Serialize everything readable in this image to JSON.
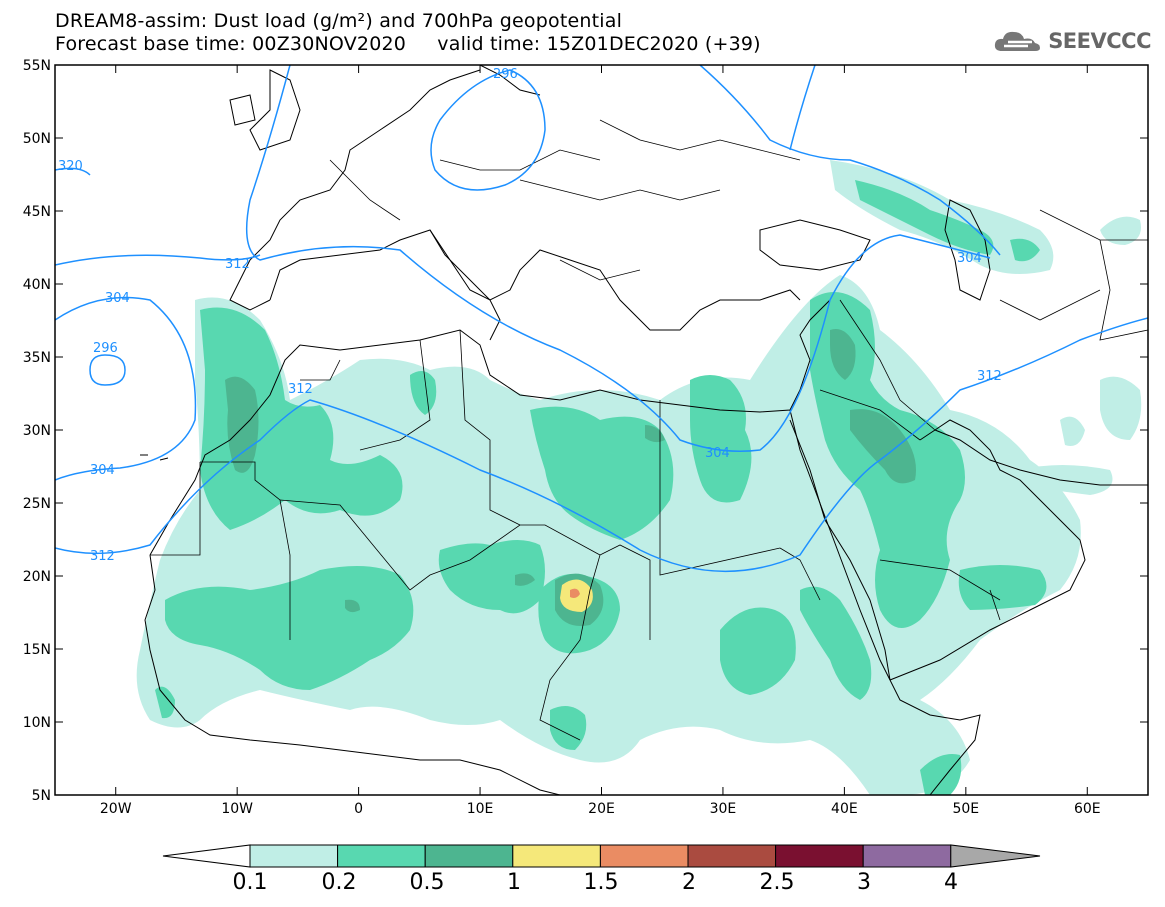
{
  "title": {
    "line1": "DREAM8-assim: Dust load (g/m²) and 700hPa geopotential",
    "line2": "Forecast base time: 00Z30NOV2020     valid time: 15Z01DEC2020 (+39)"
  },
  "logo": {
    "text": "SEEVCCC",
    "icon": "cloud-icon"
  },
  "map": {
    "lon_range": [
      -25,
      65
    ],
    "lat_range": [
      5,
      55
    ],
    "lat_ticks": [
      "55N",
      "50N",
      "45N",
      "40N",
      "35N",
      "30N",
      "25N",
      "20N",
      "15N",
      "10N",
      "5N"
    ],
    "lon_ticks": [
      "20W",
      "10W",
      "0",
      "10E",
      "20E",
      "30E",
      "40E",
      "50E",
      "60E"
    ],
    "contour_labels": [
      "320",
      "296",
      "312",
      "304",
      "296",
      "312",
      "304",
      "304",
      "312",
      "304",
      "312"
    ],
    "contour_color": "#1e90ff"
  },
  "colorbar": {
    "levels": [
      "0.1",
      "0.2",
      "0.5",
      "1",
      "1.5",
      "2",
      "2.5",
      "3",
      "4"
    ],
    "colors": [
      "#c0eee6",
      "#58d8b0",
      "#4db590",
      "#f5e87a",
      "#ea8c63",
      "#aa4b40",
      "#7a1030",
      "#8e6aa0"
    ],
    "under_color": "#ffffff",
    "over_color": "#a8a8a8"
  }
}
